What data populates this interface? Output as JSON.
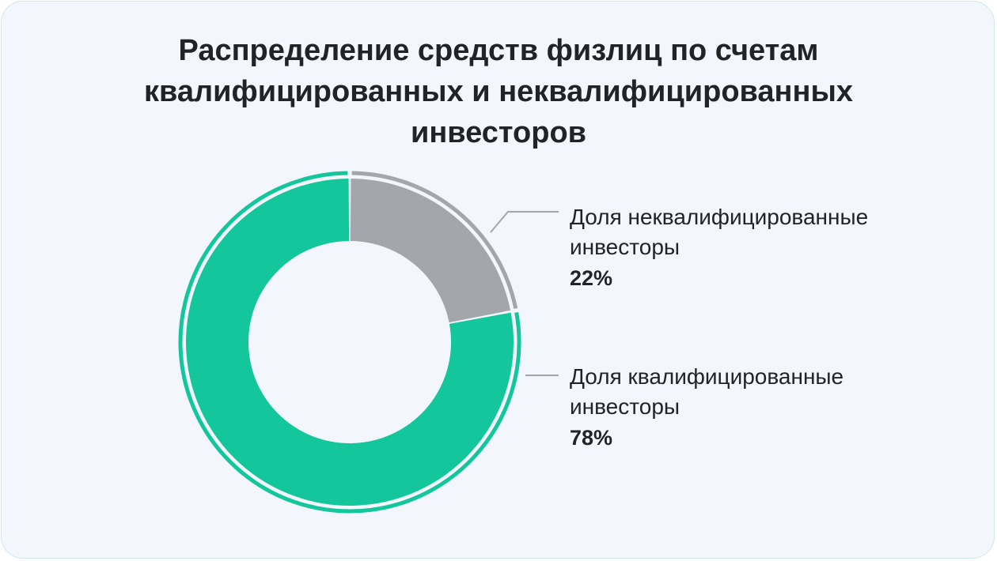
{
  "chart_data": {
    "type": "pie",
    "title_lines": [
      "Распределение средств физлиц по счетам",
      "квалифицированных и неквалифицированных",
      "инвесторов"
    ],
    "series": [
      {
        "label_lines": [
          "Доля неквалифицированные",
          "инвесторы"
        ],
        "value": 22,
        "value_label": "22%",
        "color": "#a3a6aa"
      },
      {
        "label_lines": [
          "Доля квалифицированные",
          "инвесторы"
        ],
        "value": 78,
        "value_label": "78%",
        "color": "#13c69c"
      }
    ]
  }
}
